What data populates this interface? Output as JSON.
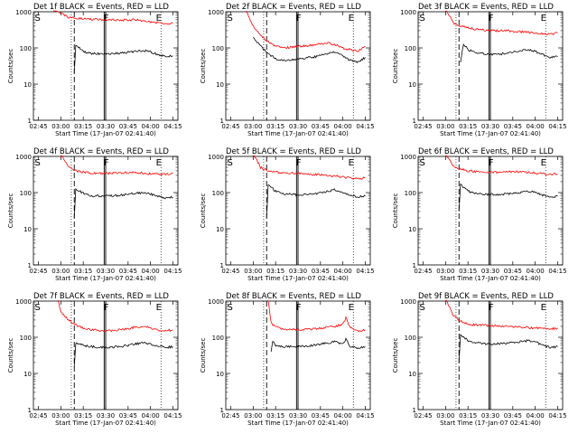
{
  "chart_data": [
    {
      "type": "line",
      "title": "Det 1f BLACK = Events, RED = LLD",
      "xlabel": "Start Time (17-Jan-07 02:41:40)",
      "ylabel": "Counts/sec",
      "yscale": "log",
      "ylim": [
        1,
        1000
      ],
      "xlim": [
        "02:41:40",
        "04:18:20"
      ],
      "x_ticks": [
        "02:45",
        "03:00",
        "03:15",
        "03:30",
        "03:45",
        "04:00",
        "04:15"
      ],
      "y_ticks": [
        "1",
        "10",
        "100",
        "1000"
      ],
      "markers": [
        "S",
        "F",
        "E"
      ],
      "series": [
        {
          "color": "#ff0000",
          "x": [
            "02:55",
            "03:05",
            "03:13",
            "03:20",
            "03:30",
            "03:40",
            "03:50",
            "03:55",
            "04:00",
            "04:05",
            "04:10",
            "04:15"
          ],
          "values": [
            1200,
            700,
            650,
            620,
            600,
            580,
            600,
            560,
            520,
            500,
            460,
            480
          ]
        },
        {
          "color": "#000000",
          "x": [
            "03:09",
            "03:10",
            "03:15",
            "03:20",
            "03:30",
            "03:40",
            "03:50",
            "03:55",
            "04:00",
            "04:05",
            "04:10",
            "04:15"
          ],
          "values": [
            20,
            120,
            80,
            70,
            68,
            72,
            80,
            85,
            78,
            65,
            58,
            60
          ]
        }
      ]
    },
    {
      "type": "line",
      "title": "Det 2f BLACK = Events, RED = LLD",
      "xlabel": "Start Time (17-Jan-07 02:41:40)",
      "ylabel": "Counts/sec",
      "yscale": "log",
      "ylim": [
        1,
        1000
      ],
      "xlim": [
        "02:41:40",
        "04:18:20"
      ],
      "x_ticks": [
        "02:45",
        "03:00",
        "03:15",
        "03:30",
        "03:45",
        "04:00",
        "04:15"
      ],
      "y_ticks": [
        "1",
        "10",
        "100",
        "1000"
      ],
      "markers": [
        "S",
        "F",
        "E"
      ],
      "series": [
        {
          "color": "#ff0000",
          "x": [
            "02:55",
            "03:00",
            "03:05",
            "03:10",
            "03:15",
            "03:20",
            "03:30",
            "03:40",
            "03:50",
            "03:55",
            "04:00",
            "04:05",
            "04:10",
            "04:15"
          ],
          "values": [
            1100,
            400,
            220,
            150,
            110,
            100,
            110,
            120,
            140,
            120,
            100,
            90,
            80,
            110
          ]
        },
        {
          "color": "#000000",
          "x": [
            "03:00",
            "03:05",
            "03:10",
            "03:15",
            "03:20",
            "03:30",
            "03:40",
            "03:50",
            "03:55",
            "04:00",
            "04:05",
            "04:10",
            "04:15"
          ],
          "values": [
            200,
            110,
            70,
            50,
            45,
            50,
            55,
            70,
            75,
            60,
            45,
            40,
            55
          ]
        }
      ]
    },
    {
      "type": "line",
      "title": "Det 3f BLACK = Events, RED = LLD",
      "xlabel": "Start Time (17-Jan-07 02:41:40)",
      "ylabel": "Counts/sec",
      "yscale": "log",
      "ylim": [
        1,
        1000
      ],
      "xlim": [
        "02:41:40",
        "04:18:20"
      ],
      "x_ticks": [
        "02:45",
        "03:00",
        "03:15",
        "03:30",
        "03:45",
        "04:00",
        "04:15"
      ],
      "y_ticks": [
        "1",
        "10",
        "100",
        "1000"
      ],
      "markers": [
        "S",
        "F",
        "E"
      ],
      "series": [
        {
          "color": "#ff0000",
          "x": [
            "03:00",
            "03:05",
            "03:10",
            "03:15",
            "03:20",
            "03:30",
            "03:40",
            "03:50",
            "04:00",
            "04:10",
            "04:15"
          ],
          "values": [
            1200,
            500,
            400,
            360,
            330,
            300,
            300,
            280,
            260,
            240,
            260
          ]
        },
        {
          "color": "#000000",
          "x": [
            "03:10",
            "03:12",
            "03:15",
            "03:20",
            "03:30",
            "03:40",
            "03:50",
            "03:55",
            "04:00",
            "04:05",
            "04:10",
            "04:15"
          ],
          "values": [
            40,
            130,
            90,
            75,
            65,
            70,
            85,
            90,
            80,
            65,
            55,
            58
          ]
        }
      ]
    },
    {
      "type": "line",
      "title": "Det 4f BLACK = Events, RED = LLD",
      "xlabel": "Start Time (17-Jan-07 02:41:40)",
      "ylabel": "Counts/sec",
      "yscale": "log",
      "ylim": [
        1,
        1000
      ],
      "xlim": [
        "02:41:40",
        "04:18:20"
      ],
      "x_ticks": [
        "02:45",
        "03:00",
        "03:15",
        "03:30",
        "03:45",
        "04:00",
        "04:15"
      ],
      "y_ticks": [
        "1",
        "10",
        "100",
        "1000"
      ],
      "markers": [
        "S",
        "F",
        "E"
      ],
      "series": [
        {
          "color": "#ff0000",
          "x": [
            "03:00",
            "03:05",
            "03:10",
            "03:15",
            "03:20",
            "03:30",
            "03:40",
            "03:50",
            "04:00",
            "04:10",
            "04:15"
          ],
          "values": [
            1200,
            500,
            400,
            370,
            350,
            340,
            350,
            360,
            330,
            320,
            340
          ]
        },
        {
          "color": "#000000",
          "x": [
            "03:09",
            "03:10",
            "03:15",
            "03:20",
            "03:30",
            "03:40",
            "03:50",
            "03:55",
            "04:00",
            "04:05",
            "04:10",
            "04:15"
          ],
          "values": [
            20,
            130,
            95,
            80,
            80,
            85,
            95,
            100,
            90,
            80,
            70,
            75
          ]
        }
      ]
    },
    {
      "type": "line",
      "title": "Det 5f BLACK = Events, RED = LLD",
      "xlabel": "Start Time (17-Jan-07 02:41:40)",
      "ylabel": "Counts/sec",
      "yscale": "log",
      "ylim": [
        1,
        1000
      ],
      "xlim": [
        "02:41:40",
        "04:18:20"
      ],
      "x_ticks": [
        "02:45",
        "03:00",
        "03:15",
        "03:30",
        "03:45",
        "04:00",
        "04:15"
      ],
      "y_ticks": [
        "1",
        "10",
        "100",
        "1000"
      ],
      "markers": [
        "S",
        "F",
        "E"
      ],
      "series": [
        {
          "color": "#ff0000",
          "x": [
            "03:00",
            "03:05",
            "03:10",
            "03:15",
            "03:20",
            "03:30",
            "03:40",
            "03:50",
            "04:00",
            "04:10",
            "04:15"
          ],
          "values": [
            1200,
            500,
            400,
            370,
            360,
            340,
            320,
            300,
            270,
            240,
            260
          ]
        },
        {
          "color": "#000000",
          "x": [
            "03:09",
            "03:10",
            "03:15",
            "03:20",
            "03:30",
            "03:40",
            "03:50",
            "03:55",
            "04:00",
            "04:05",
            "04:10",
            "04:15"
          ],
          "values": [
            20,
            160,
            110,
            95,
            85,
            90,
            110,
            120,
            100,
            85,
            75,
            80
          ]
        }
      ]
    },
    {
      "type": "line",
      "title": "Det 6f BLACK = Events, RED = LLD",
      "xlabel": "Start Time (17-Jan-07 02:41:40)",
      "ylabel": "Counts/sec",
      "yscale": "log",
      "ylim": [
        1,
        1000
      ],
      "xlim": [
        "02:41:40",
        "04:18:20"
      ],
      "x_ticks": [
        "02:45",
        "03:00",
        "03:15",
        "03:30",
        "03:45",
        "04:00",
        "04:15"
      ],
      "y_ticks": [
        "1",
        "10",
        "100",
        "1000"
      ],
      "markers": [
        "S",
        "F",
        "E"
      ],
      "series": [
        {
          "color": "#ff0000",
          "x": [
            "03:00",
            "03:05",
            "03:10",
            "03:15",
            "03:20",
            "03:30",
            "03:40",
            "03:50",
            "04:00",
            "04:10",
            "04:15"
          ],
          "values": [
            1200,
            550,
            450,
            400,
            380,
            360,
            370,
            380,
            350,
            320,
            330
          ]
        },
        {
          "color": "#000000",
          "x": [
            "03:09",
            "03:10",
            "03:15",
            "03:20",
            "03:30",
            "03:40",
            "03:50",
            "03:55",
            "04:00",
            "04:05",
            "04:10",
            "04:15"
          ],
          "values": [
            30,
            170,
            110,
            95,
            90,
            90,
            100,
            110,
            100,
            85,
            75,
            80
          ]
        }
      ]
    },
    {
      "type": "line",
      "title": "Det 7f BLACK = Events, RED = LLD",
      "xlabel": "Start Time (17-Jan-07 02:41:40)",
      "ylabel": "Counts/sec",
      "yscale": "log",
      "ylim": [
        1,
        1000
      ],
      "xlim": [
        "02:41:40",
        "04:18:20"
      ],
      "x_ticks": [
        "02:45",
        "03:00",
        "03:15",
        "03:30",
        "03:45",
        "04:00",
        "04:15"
      ],
      "y_ticks": [
        "1",
        "10",
        "100",
        "1000"
      ],
      "markers": [
        "S",
        "F",
        "E"
      ],
      "series": [
        {
          "color": "#ff0000",
          "x": [
            "02:58",
            "03:00",
            "03:05",
            "03:10",
            "03:15",
            "03:20",
            "03:30",
            "03:40",
            "03:50",
            "03:55",
            "04:00",
            "04:05",
            "04:10",
            "04:15"
          ],
          "values": [
            1200,
            500,
            300,
            220,
            180,
            160,
            150,
            160,
            190,
            200,
            180,
            160,
            150,
            160
          ]
        },
        {
          "color": "#000000",
          "x": [
            "03:09",
            "03:10",
            "03:15",
            "03:20",
            "03:30",
            "03:40",
            "03:50",
            "03:55",
            "04:00",
            "04:05",
            "04:10",
            "04:15"
          ],
          "values": [
            15,
            70,
            60,
            55,
            52,
            55,
            65,
            70,
            65,
            58,
            52,
            55
          ]
        }
      ]
    },
    {
      "type": "line",
      "title": "Det 8f BLACK = Events, RED = LLD",
      "xlabel": "Start Time (17-Jan-07 02:41:40)",
      "ylabel": "Counts/sec",
      "yscale": "log",
      "ylim": [
        1,
        1000
      ],
      "xlim": [
        "02:41:40",
        "04:18:20"
      ],
      "x_ticks": [
        "02:45",
        "03:00",
        "03:15",
        "03:30",
        "03:45",
        "04:00",
        "04:15"
      ],
      "y_ticks": [
        "1",
        "10",
        "100",
        "1000"
      ],
      "markers": [
        "S",
        "F",
        "E"
      ],
      "series": [
        {
          "color": "#ff0000",
          "x": [
            "03:10",
            "03:12",
            "03:15",
            "03:20",
            "03:30",
            "03:40",
            "03:50",
            "03:55",
            "04:00",
            "04:02",
            "04:05",
            "04:10",
            "04:15"
          ],
          "values": [
            1100,
            250,
            190,
            170,
            160,
            170,
            190,
            200,
            230,
            350,
            180,
            150,
            160
          ]
        },
        {
          "color": "#000000",
          "x": [
            "03:12",
            "03:13",
            "03:15",
            "03:20",
            "03:30",
            "03:40",
            "03:50",
            "03:55",
            "04:00",
            "04:02",
            "04:05",
            "04:10",
            "04:15"
          ],
          "values": [
            40,
            75,
            60,
            55,
            55,
            60,
            70,
            75,
            65,
            90,
            55,
            50,
            55
          ]
        }
      ]
    },
    {
      "type": "line",
      "title": "Det 9f BLACK = Events, RED = LLD",
      "xlabel": "Start Time (17-Jan-07 02:41:40)",
      "ylabel": "Counts/sec",
      "yscale": "log",
      "ylim": [
        1,
        1000
      ],
      "xlim": [
        "02:41:40",
        "04:18:20"
      ],
      "x_ticks": [
        "02:45",
        "03:00",
        "03:15",
        "03:30",
        "03:45",
        "04:00",
        "04:15"
      ],
      "y_ticks": [
        "1",
        "10",
        "100",
        "1000"
      ],
      "markers": [
        "S",
        "F",
        "E"
      ],
      "series": [
        {
          "color": "#ff0000",
          "x": [
            "03:00",
            "03:05",
            "03:10",
            "03:15",
            "03:20",
            "03:30",
            "03:40",
            "03:50",
            "04:00",
            "04:10",
            "04:15"
          ],
          "values": [
            1200,
            400,
            280,
            230,
            220,
            210,
            200,
            190,
            180,
            170,
            180
          ]
        },
        {
          "color": "#000000",
          "x": [
            "03:09",
            "03:10",
            "03:15",
            "03:20",
            "03:30",
            "03:40",
            "03:50",
            "03:55",
            "04:00",
            "04:05",
            "04:10",
            "04:15"
          ],
          "values": [
            20,
            120,
            80,
            70,
            65,
            68,
            75,
            80,
            75,
            60,
            52,
            55
          ]
        }
      ]
    }
  ]
}
